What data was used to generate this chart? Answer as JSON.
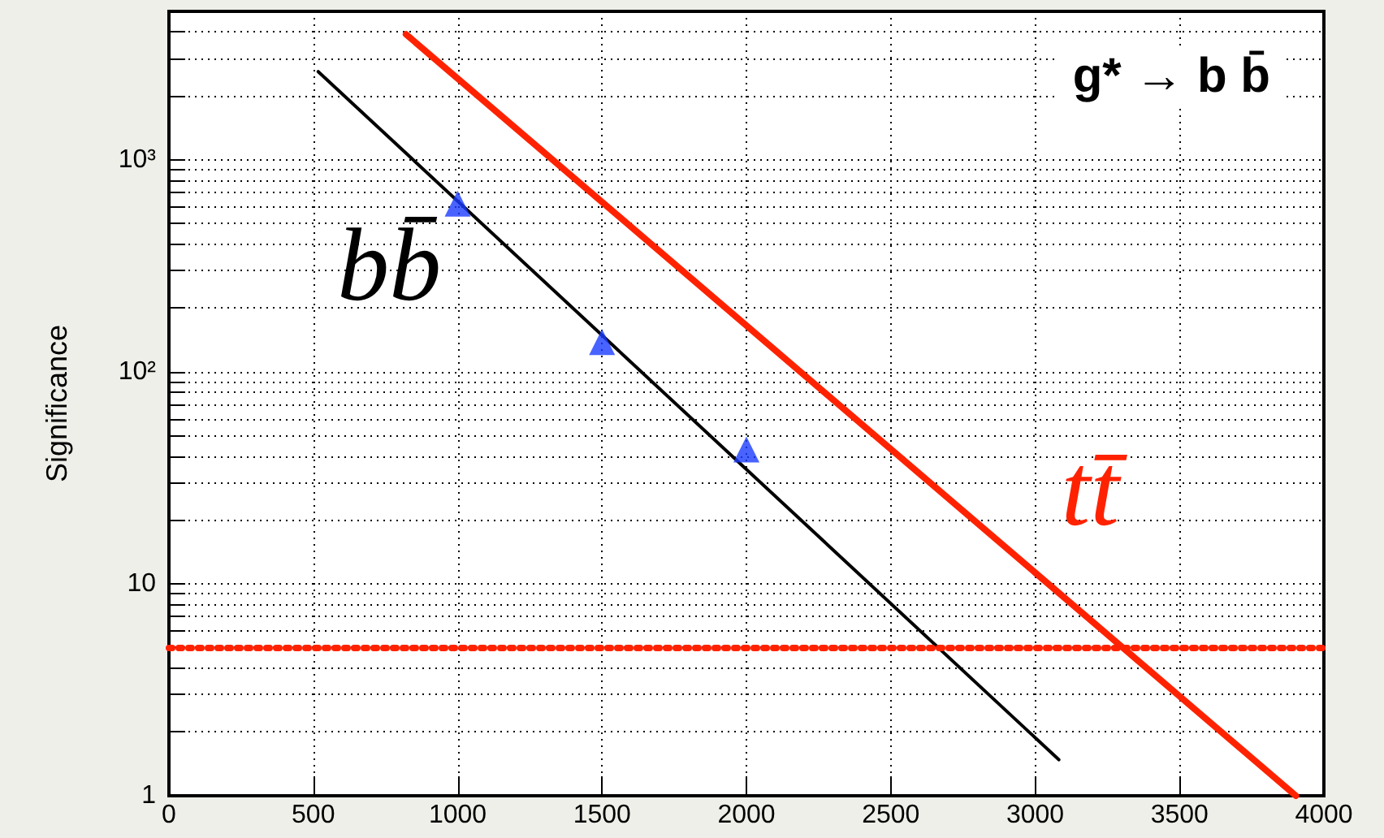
{
  "chart_data": {
    "type": "line",
    "ylabel": "Significance",
    "annotations": [
      "g* → b b̄"
    ],
    "xlim": [
      0,
      4000
    ],
    "xticks": [
      0,
      500,
      1000,
      1500,
      2000,
      2500,
      3000,
      3500,
      4000
    ],
    "log": "y",
    "ylim": [
      1,
      5000
    ],
    "yticks": [
      {
        "value": 1,
        "label": "1"
      },
      {
        "value": 2,
        "label": null
      },
      {
        "value": 3,
        "label": null
      },
      {
        "value": 4,
        "label": null
      },
      {
        "value": 5,
        "label": null
      },
      {
        "value": 6,
        "label": null
      },
      {
        "value": 7,
        "label": null
      },
      {
        "value": 8,
        "label": null
      },
      {
        "value": 9,
        "label": null
      },
      {
        "value": 10,
        "label": "10"
      },
      {
        "value": 20,
        "label": null
      },
      {
        "value": 30,
        "label": null
      },
      {
        "value": 40,
        "label": null
      },
      {
        "value": 50,
        "label": null
      },
      {
        "value": 60,
        "label": null
      },
      {
        "value": 70,
        "label": null
      },
      {
        "value": 80,
        "label": null
      },
      {
        "value": 90,
        "label": null
      },
      {
        "value": 100,
        "label": "10²"
      },
      {
        "value": 200,
        "label": null
      },
      {
        "value": 300,
        "label": null
      },
      {
        "value": 400,
        "label": null
      },
      {
        "value": 500,
        "label": null
      },
      {
        "value": 600,
        "label": null
      },
      {
        "value": 700,
        "label": null
      },
      {
        "value": 800,
        "label": null
      },
      {
        "value": 900,
        "label": null
      },
      {
        "value": 1000,
        "label": "10³"
      },
      {
        "value": 2000,
        "label": null
      },
      {
        "value": 3000,
        "label": null
      },
      {
        "value": 4000,
        "label": null
      }
    ],
    "grid": true,
    "legend": false,
    "series": [
      {
        "name": "bb̄",
        "type": "line",
        "color": "#000000",
        "marker": "none",
        "x": [
          517,
          3082
        ],
        "values": [
          2600,
          1.48
        ]
      },
      {
        "name": "tt̄",
        "type": "line",
        "color": "#ff2200",
        "marker": "none",
        "x": [
          821,
          3903
        ],
        "values": [
          3900,
          1
        ]
      },
      {
        "type": "scatter",
        "color": "#1a3cff",
        "marker": "triangle",
        "x": [
          1000,
          1500,
          2000
        ],
        "values": [
          620,
          138,
          43
        ]
      }
    ],
    "ref_lines": [
      {
        "axis": "y",
        "value": 5,
        "color": "#ff2200",
        "line_style": "dotted"
      }
    ]
  }
}
